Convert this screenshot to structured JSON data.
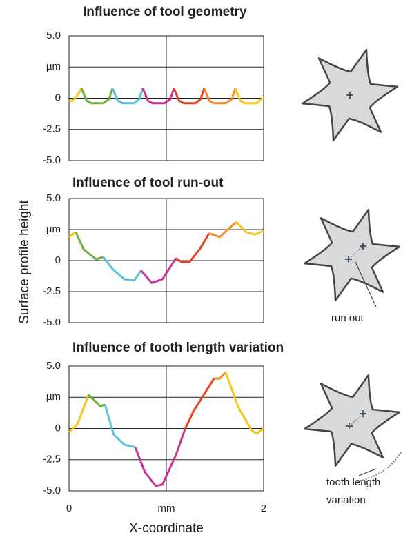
{
  "chart_data": [
    {
      "type": "line",
      "title": "Influence of tool geometry",
      "xlim": [
        0,
        2
      ],
      "ylim": [
        -5,
        5
      ],
      "yticks": [
        {
          "value": 5,
          "label": "5.0"
        },
        {
          "value": 2.5,
          "label": "µm"
        },
        0,
        -2.5,
        {
          "value": -5,
          "label": "-5.0"
        }
      ],
      "series": [
        {
          "color": "#f5c518",
          "x": [
            0,
            0.05,
            0.1,
            0.128
          ],
          "values": [
            -0.3,
            -0.1,
            0.4,
            0.8
          ]
        },
        {
          "color": "#6ab23a",
          "x": [
            0.128,
            0.18,
            0.23,
            0.35,
            0.41,
            0.447
          ],
          "values": [
            0.8,
            -0.2,
            -0.4,
            -0.4,
            -0.1,
            0.8
          ]
        },
        {
          "color": "#5bc0d9",
          "x": [
            0.447,
            0.5,
            0.55,
            0.67,
            0.72,
            0.759
          ],
          "values": [
            0.8,
            -0.2,
            -0.4,
            -0.4,
            -0.1,
            0.8
          ]
        },
        {
          "color": "#c8338e",
          "x": [
            0.759,
            0.81,
            0.86,
            0.98,
            1.04,
            1.078
          ],
          "values": [
            0.8,
            -0.2,
            -0.4,
            -0.4,
            -0.1,
            0.8
          ]
        },
        {
          "color": "#e0431f",
          "x": [
            1.078,
            1.13,
            1.18,
            1.3,
            1.35,
            1.39
          ],
          "values": [
            0.8,
            -0.2,
            -0.4,
            -0.4,
            -0.1,
            0.8
          ]
        },
        {
          "color": "#f28c28",
          "x": [
            1.39,
            1.44,
            1.49,
            1.61,
            1.67,
            1.71
          ],
          "values": [
            0.8,
            -0.2,
            -0.4,
            -0.4,
            -0.1,
            0.8
          ]
        },
        {
          "color": "#f5c518",
          "x": [
            1.71,
            1.76,
            1.81,
            1.93,
            2.0
          ],
          "values": [
            0.8,
            -0.2,
            -0.4,
            -0.4,
            0.1
          ]
        }
      ]
    },
    {
      "type": "line",
      "title": "Influence of tool run-out",
      "ylabel": "Surface profile height",
      "xlim": [
        0,
        2
      ],
      "ylim": [
        -5,
        5
      ],
      "yticks": [
        {
          "value": 5,
          "label": "5.0"
        },
        {
          "value": 2.5,
          "label": "µm"
        },
        0,
        -2.5,
        {
          "value": -5,
          "label": "-5.0"
        }
      ],
      "annotations": [
        "run out"
      ],
      "series": [
        {
          "color": "#f5c518",
          "x": [
            0,
            0.07
          ],
          "values": [
            1.9,
            2.3
          ]
        },
        {
          "color": "#6ab23a",
          "x": [
            0.07,
            0.15,
            0.28,
            0.35
          ],
          "values": [
            2.3,
            0.9,
            0.1,
            0.3
          ]
        },
        {
          "color": "#5bc0d9",
          "x": [
            0.35,
            0.45,
            0.57,
            0.67,
            0.74
          ],
          "values": [
            0.3,
            -0.7,
            -1.5,
            -1.6,
            -0.8
          ]
        },
        {
          "color": "#c8338e",
          "x": [
            0.74,
            0.85,
            0.96,
            1.1
          ],
          "values": [
            -0.8,
            -1.8,
            -1.5,
            0.2
          ]
        },
        {
          "color": "#e0431f",
          "x": [
            1.1,
            1.15,
            1.24,
            1.35,
            1.44
          ],
          "values": [
            0.2,
            -0.1,
            -0.1,
            1.0,
            2.2
          ]
        },
        {
          "color": "#f28c28",
          "x": [
            1.44,
            1.55,
            1.63,
            1.72
          ],
          "values": [
            2.2,
            1.9,
            2.5,
            3.1
          ]
        },
        {
          "color": "#f5c518",
          "x": [
            1.72,
            1.82,
            1.91,
            2.0
          ],
          "values": [
            3.1,
            2.3,
            2.1,
            2.4
          ]
        }
      ]
    },
    {
      "type": "line",
      "title": "Influence of tooth length variation",
      "xlabel": "X-coordinate",
      "xlim": [
        0,
        2
      ],
      "ylim": [
        -5,
        5
      ],
      "xticks": [
        0,
        {
          "value": 1,
          "label": "mm"
        },
        2
      ],
      "yticks": [
        {
          "value": 5,
          "label": "5.0"
        },
        {
          "value": 2.5,
          "label": "µm"
        },
        0,
        -2.5,
        {
          "value": -5,
          "label": "-5.0"
        }
      ],
      "annotations": [
        "tooth length",
        "variation"
      ],
      "series": [
        {
          "color": "#f5c518",
          "x": [
            0,
            0.09,
            0.2
          ],
          "values": [
            -0.3,
            0.4,
            2.7
          ]
        },
        {
          "color": "#6ab23a",
          "x": [
            0.2,
            0.32,
            0.37
          ],
          "values": [
            2.7,
            1.8,
            1.9
          ]
        },
        {
          "color": "#5bc0d9",
          "x": [
            0.37,
            0.46,
            0.57,
            0.68
          ],
          "values": [
            1.9,
            -0.5,
            -1.3,
            -1.5
          ]
        },
        {
          "color": "#c8338e",
          "x": [
            0.68,
            0.78,
            0.89,
            0.96,
            1.1,
            1.19
          ],
          "values": [
            -1.5,
            -3.5,
            -4.6,
            -4.5,
            -2.1,
            -0.1
          ]
        },
        {
          "color": "#e0431f",
          "x": [
            1.19,
            1.28,
            1.49
          ],
          "values": [
            -0.1,
            1.4,
            4.0
          ]
        },
        {
          "color": "#f28c28",
          "x": [
            1.49,
            1.55,
            1.61
          ],
          "values": [
            4.0,
            4.0,
            4.5
          ]
        },
        {
          "color": "#f5c518",
          "x": [
            1.61,
            1.74,
            1.88,
            1.93,
            2.0
          ],
          "values": [
            4.5,
            1.7,
            -0.2,
            -0.4,
            0
          ]
        }
      ]
    }
  ]
}
